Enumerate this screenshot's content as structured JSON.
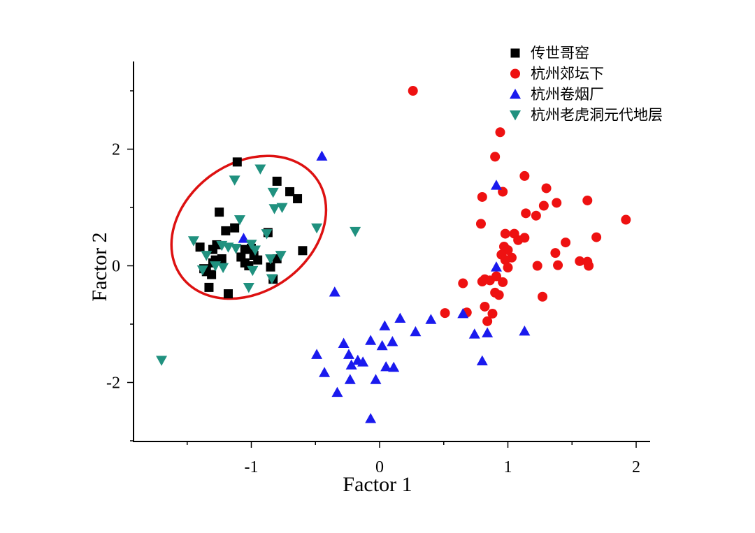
{
  "chart_data": {
    "type": "scatter",
    "xlabel": "Factor 1",
    "ylabel": "Factor 2",
    "xlim": [
      -1.9,
      2.1
    ],
    "ylim": [
      -3.0,
      3.5
    ],
    "x_ticks": [
      -1,
      0,
      1,
      2
    ],
    "y_ticks": [
      -2,
      0,
      2
    ],
    "legend_position": "top-right",
    "grid": false,
    "series": [
      {
        "name": "传世哥窑",
        "marker": "square",
        "color": "#000000",
        "points": [
          [
            -1.11,
            1.78
          ],
          [
            -1.25,
            0.92
          ],
          [
            -1.2,
            0.6
          ],
          [
            -1.13,
            0.65
          ],
          [
            -1.27,
            0.36
          ],
          [
            -1.3,
            0.28
          ],
          [
            -1.4,
            0.32
          ],
          [
            -1.28,
            0.1
          ],
          [
            -1.23,
            0.12
          ],
          [
            -1.3,
            0.05
          ],
          [
            -1.35,
            -0.1
          ],
          [
            -1.31,
            -0.15
          ],
          [
            -1.37,
            -0.05
          ],
          [
            -1.33,
            -0.37
          ],
          [
            -1.18,
            -0.48
          ],
          [
            -1.08,
            0.15
          ],
          [
            -1.05,
            0.28
          ],
          [
            -1.0,
            0.3
          ],
          [
            -1.02,
            0.0
          ],
          [
            -0.98,
            0.18
          ],
          [
            -0.95,
            0.1
          ],
          [
            -0.87,
            0.57
          ],
          [
            -0.85,
            -0.02
          ],
          [
            -0.8,
            0.12
          ],
          [
            -0.83,
            -0.23
          ],
          [
            -0.8,
            1.45
          ],
          [
            -0.7,
            1.27
          ],
          [
            -0.64,
            1.15
          ],
          [
            -0.6,
            0.26
          ],
          [
            -1.05,
            0.05
          ]
        ]
      },
      {
        "name": "杭州郊坛下",
        "marker": "circle",
        "color": "#ee1111",
        "points": [
          [
            0.26,
            3.0
          ],
          [
            0.94,
            2.29
          ],
          [
            0.9,
            1.87
          ],
          [
            1.13,
            1.54
          ],
          [
            1.3,
            1.33
          ],
          [
            0.96,
            1.27
          ],
          [
            0.8,
            1.18
          ],
          [
            1.62,
            1.12
          ],
          [
            1.38,
            1.08
          ],
          [
            1.28,
            1.03
          ],
          [
            1.14,
            0.9
          ],
          [
            1.22,
            0.86
          ],
          [
            1.92,
            0.79
          ],
          [
            0.79,
            0.72
          ],
          [
            0.98,
            0.55
          ],
          [
            1.05,
            0.55
          ],
          [
            1.13,
            0.48
          ],
          [
            1.08,
            0.44
          ],
          [
            1.69,
            0.49
          ],
          [
            1.45,
            0.4
          ],
          [
            0.97,
            0.33
          ],
          [
            1.0,
            0.27
          ],
          [
            0.95,
            0.19
          ],
          [
            1.03,
            0.14
          ],
          [
            0.98,
            0.1
          ],
          [
            1.37,
            0.22
          ],
          [
            1.56,
            0.08
          ],
          [
            1.62,
            0.07
          ],
          [
            1.39,
            0.01
          ],
          [
            1.63,
            0.0
          ],
          [
            1.23,
            0.0
          ],
          [
            1.0,
            -0.03
          ],
          [
            0.82,
            -0.23
          ],
          [
            0.86,
            -0.25
          ],
          [
            0.8,
            -0.27
          ],
          [
            0.65,
            -0.3
          ],
          [
            0.91,
            -0.18
          ],
          [
            0.96,
            -0.28
          ],
          [
            0.9,
            -0.46
          ],
          [
            0.93,
            -0.5
          ],
          [
            0.82,
            -0.7
          ],
          [
            1.27,
            -0.53
          ],
          [
            0.88,
            -0.82
          ],
          [
            0.51,
            -0.81
          ],
          [
            0.68,
            -0.8
          ],
          [
            0.84,
            -0.95
          ]
        ]
      },
      {
        "name": "杭州卷烟厂",
        "marker": "triangle-up",
        "color": "#1a1aee",
        "points": [
          [
            -0.45,
            1.88
          ],
          [
            0.91,
            1.38
          ],
          [
            -1.06,
            0.47
          ],
          [
            0.91,
            -0.02
          ],
          [
            -0.35,
            -0.45
          ],
          [
            0.16,
            -0.9
          ],
          [
            0.4,
            -0.92
          ],
          [
            0.65,
            -0.82
          ],
          [
            0.28,
            -1.13
          ],
          [
            0.04,
            -1.03
          ],
          [
            0.1,
            -1.3
          ],
          [
            0.74,
            -1.17
          ],
          [
            0.84,
            -1.15
          ],
          [
            1.13,
            -1.12
          ],
          [
            -0.28,
            -1.33
          ],
          [
            -0.07,
            -1.28
          ],
          [
            0.02,
            -1.37
          ],
          [
            -0.49,
            -1.52
          ],
          [
            -0.24,
            -1.52
          ],
          [
            -0.22,
            -1.7
          ],
          [
            -0.17,
            -1.62
          ],
          [
            -0.13,
            -1.65
          ],
          [
            0.05,
            -1.73
          ],
          [
            0.11,
            -1.74
          ],
          [
            -0.43,
            -1.83
          ],
          [
            -0.23,
            -1.95
          ],
          [
            -0.03,
            -1.95
          ],
          [
            0.8,
            -1.63
          ],
          [
            -0.33,
            -2.17
          ],
          [
            -0.07,
            -2.62
          ]
        ]
      },
      {
        "name": "杭州老虎洞元代地层",
        "marker": "triangle-down",
        "color": "#20917f",
        "points": [
          [
            -0.93,
            1.66
          ],
          [
            -1.13,
            1.47
          ],
          [
            -0.83,
            1.26
          ],
          [
            -0.82,
            0.98
          ],
          [
            -0.76,
            1.0
          ],
          [
            -1.09,
            0.79
          ],
          [
            -0.49,
            0.65
          ],
          [
            -0.19,
            0.59
          ],
          [
            -0.88,
            0.55
          ],
          [
            -1.45,
            0.43
          ],
          [
            -1.18,
            0.32
          ],
          [
            -1.12,
            0.3
          ],
          [
            -1.23,
            0.35
          ],
          [
            -1.0,
            0.37
          ],
          [
            -0.97,
            0.27
          ],
          [
            -1.35,
            0.18
          ],
          [
            -0.77,
            0.18
          ],
          [
            -0.85,
            0.12
          ],
          [
            -1.28,
            0.0
          ],
          [
            -1.22,
            -0.03
          ],
          [
            -1.38,
            -0.07
          ],
          [
            -0.99,
            -0.08
          ],
          [
            -0.84,
            -0.22
          ],
          [
            -1.02,
            -0.37
          ],
          [
            -1.7,
            -1.62
          ]
        ]
      }
    ],
    "annotations": [
      {
        "type": "ellipse",
        "color": "#dd1111",
        "cx": -1.02,
        "cy": 0.66,
        "rx": 0.65,
        "ry": 1.1,
        "rotation_deg": -36
      }
    ]
  }
}
